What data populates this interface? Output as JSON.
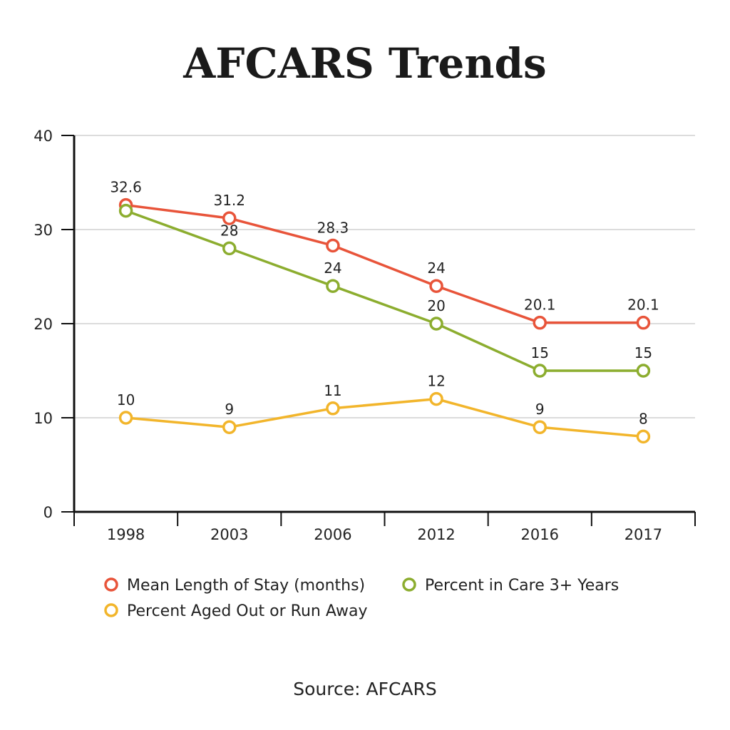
{
  "chart_data": {
    "type": "line",
    "title": "AFCARS Trends",
    "categories": [
      "1998",
      "2003",
      "2006",
      "2012",
      "2016",
      "2017"
    ],
    "ylim": [
      0,
      40
    ],
    "yticks": [
      0,
      10,
      20,
      30,
      40
    ],
    "grid": true,
    "legend_position": "bottom",
    "series": [
      {
        "name": "Mean Length of Stay (months)",
        "color": "#e8543a",
        "values": [
          32.6,
          31.2,
          28.3,
          24,
          20.1,
          20.1
        ],
        "labels": [
          "32.6",
          "31.2",
          "28.3",
          "24",
          "20.1",
          "20.1"
        ]
      },
      {
        "name": "Percent in Care 3+ Years",
        "color": "#8cad2f",
        "values": [
          32,
          28,
          24,
          20,
          15,
          15
        ],
        "labels": [
          "",
          "28",
          "24",
          "20",
          "15",
          "15"
        ]
      },
      {
        "name": "Percent Aged Out or Run Away",
        "color": "#f2b52b",
        "values": [
          10,
          9,
          11,
          12,
          9,
          8
        ],
        "labels": [
          "10",
          "9",
          "11",
          "12",
          "9",
          "8"
        ]
      }
    ]
  },
  "footer": {
    "source": "Source: AFCARS"
  }
}
